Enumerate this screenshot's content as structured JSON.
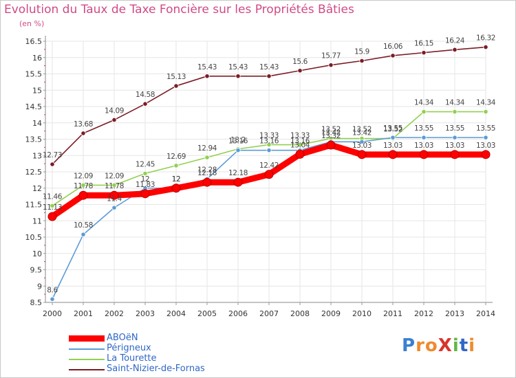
{
  "title": "Evolution du Taux de Taxe Foncière sur les Propriétés Bâties",
  "unit_label": "(en %)",
  "logo": {
    "text": "ProXiti",
    "letters": [
      "P",
      "r",
      "o",
      "X",
      "i",
      "t",
      "i"
    ],
    "letter_colors": [
      "#3a7fd4",
      "#ef8a2e",
      "#ef8a2e",
      "#d8342c",
      "#62b845",
      "#2f67c7",
      "#ef8a2e"
    ]
  },
  "chart_data": {
    "type": "line",
    "title": "Evolution du Taux de Taxe Foncière sur les Propriétés Bâties",
    "xlabel": "",
    "ylabel": "(en %)",
    "ylim": [
      8.5,
      16.5
    ],
    "yticks": [
      "8.5",
      "9",
      "9.5",
      "10",
      "10.5",
      "11",
      "11.5",
      "12",
      "12.5",
      "13",
      "13.5",
      "14",
      "14.5",
      "15",
      "15.5",
      "16",
      "16.5"
    ],
    "grid": true,
    "legend_position": "bottom-left",
    "x": [
      "2000",
      "2001",
      "2002",
      "2003",
      "2004",
      "2005",
      "2006",
      "2007",
      "2008",
      "2009",
      "2010",
      "2011",
      "2012",
      "2013",
      "2014"
    ],
    "series": [
      {
        "name": "ABOëN",
        "color": "#ff0000",
        "values": [
          11.13,
          11.78,
          11.78,
          11.83,
          12,
          12.18,
          12.18,
          12.42,
          13.04,
          13.32,
          13.03,
          13.03,
          13.03,
          13.03,
          13.03
        ],
        "labels": [
          "11.13",
          "11.78",
          "11.78",
          "11.83",
          "12",
          "12.18",
          "12.18",
          "12.42",
          "13.04",
          "13.32",
          "13.03",
          "13.03",
          "13.03",
          "13.03",
          "13.03"
        ]
      },
      {
        "name": "Périgneux",
        "color": "#5b9bd5",
        "values": [
          8.6,
          10.58,
          11.4,
          12,
          12,
          12.28,
          13.16,
          13.16,
          13.16,
          13.42,
          13.42,
          13.55,
          13.55,
          13.55,
          13.55
        ],
        "labels": [
          "8.6",
          "10.58",
          "11.4",
          "12",
          "12",
          "12.28",
          "13.16",
          "13.16",
          "13.16",
          "13.42",
          "13.42",
          "13.55",
          "13.55",
          "13.55",
          "13.55"
        ]
      },
      {
        "name": "La Tourette",
        "color": "#92d050",
        "values": [
          11.46,
          12.09,
          12.09,
          12.45,
          12.69,
          12.94,
          13.2,
          13.33,
          13.33,
          13.52,
          13.52,
          13.52,
          14.34,
          14.34,
          14.34
        ],
        "labels": [
          "11.46",
          "12.09",
          "12.09",
          "12.45",
          "12.69",
          "12.94",
          "13.2",
          "13.33",
          "13.33",
          "13.52",
          "13.52",
          "13.52",
          "14.34",
          "14.34",
          "14.34"
        ]
      },
      {
        "name": "Saint-Nizier-de-Fornas",
        "color": "#7b1c24",
        "values": [
          12.73,
          13.68,
          14.09,
          14.58,
          15.13,
          15.43,
          15.43,
          15.43,
          15.6,
          15.77,
          15.9,
          16.06,
          16.15,
          16.24,
          16.32
        ],
        "labels": [
          "12.73",
          "13.68",
          "14.09",
          "14.58",
          "15.13",
          "15.43",
          "15.43",
          "15.43",
          "15.6",
          "15.77",
          "15.9",
          "16.06",
          "16.15",
          "16.24",
          "16.32"
        ]
      }
    ]
  }
}
